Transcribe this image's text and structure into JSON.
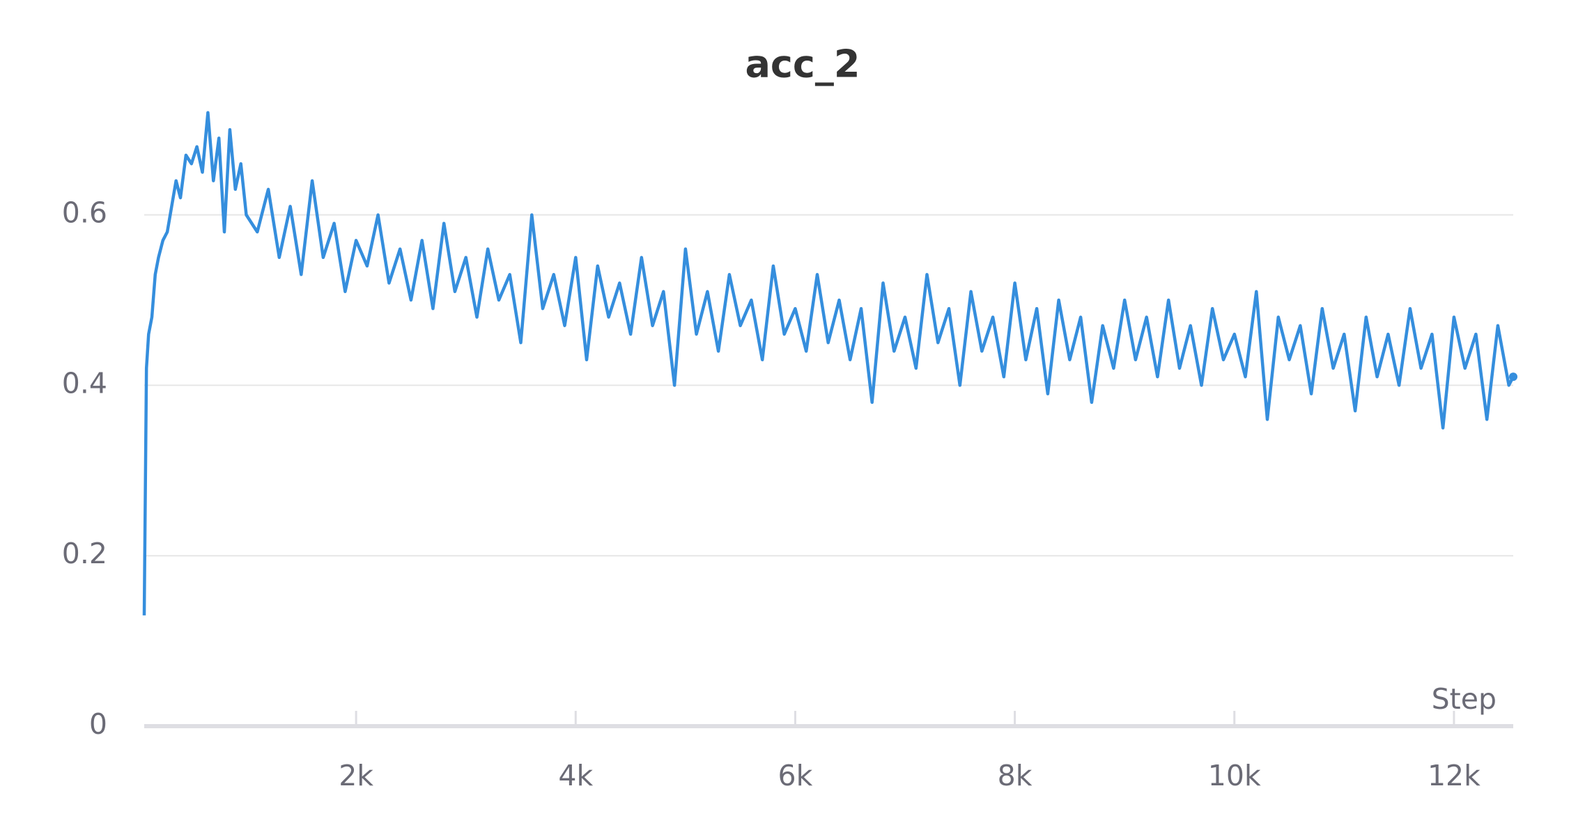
{
  "chart_data": {
    "type": "line",
    "title": "acc_2",
    "xlabel": "Step",
    "x": [
      70,
      90,
      110,
      140,
      170,
      200,
      240,
      280,
      320,
      360,
      400,
      450,
      500,
      550,
      600,
      650,
      700,
      750,
      800,
      850,
      900,
      950,
      1000,
      1100,
      1200,
      1300,
      1400,
      1500,
      1600,
      1700,
      1800,
      1900,
      2000,
      2100,
      2200,
      2300,
      2400,
      2500,
      2600,
      2700,
      2800,
      2900,
      3000,
      3100,
      3200,
      3300,
      3400,
      3500,
      3600,
      3700,
      3800,
      3900,
      4000,
      4100,
      4200,
      4300,
      4400,
      4500,
      4600,
      4700,
      4800,
      4900,
      5000,
      5100,
      5200,
      5300,
      5400,
      5500,
      5600,
      5700,
      5800,
      5900,
      6000,
      6100,
      6200,
      6300,
      6400,
      6500,
      6600,
      6700,
      6800,
      6900,
      7000,
      7100,
      7200,
      7300,
      7400,
      7500,
      7600,
      7700,
      7800,
      7900,
      8000,
      8100,
      8200,
      8300,
      8400,
      8500,
      8600,
      8700,
      8800,
      8900,
      9000,
      9100,
      9200,
      9300,
      9400,
      9500,
      9600,
      9700,
      9800,
      9900,
      10000,
      10100,
      10200,
      10300,
      10400,
      10500,
      10600,
      10700,
      10800,
      10900,
      11000,
      11100,
      11200,
      11300,
      11400,
      11500,
      11600,
      11700,
      11800,
      11900,
      12000,
      12100,
      12200,
      12300,
      12400,
      12500,
      12540
    ],
    "series": [
      {
        "name": "acc_2",
        "color": "#358edd",
        "values": [
          0.13,
          0.42,
          0.46,
          0.48,
          0.53,
          0.55,
          0.57,
          0.58,
          0.61,
          0.64,
          0.62,
          0.67,
          0.66,
          0.68,
          0.65,
          0.72,
          0.64,
          0.69,
          0.58,
          0.7,
          0.63,
          0.66,
          0.6,
          0.58,
          0.63,
          0.55,
          0.61,
          0.53,
          0.64,
          0.55,
          0.59,
          0.51,
          0.57,
          0.54,
          0.6,
          0.52,
          0.56,
          0.5,
          0.57,
          0.49,
          0.59,
          0.51,
          0.55,
          0.48,
          0.56,
          0.5,
          0.53,
          0.45,
          0.6,
          0.49,
          0.53,
          0.47,
          0.55,
          0.43,
          0.54,
          0.48,
          0.52,
          0.46,
          0.55,
          0.47,
          0.51,
          0.4,
          0.56,
          0.46,
          0.51,
          0.44,
          0.53,
          0.47,
          0.5,
          0.43,
          0.54,
          0.46,
          0.49,
          0.44,
          0.53,
          0.45,
          0.5,
          0.43,
          0.49,
          0.38,
          0.52,
          0.44,
          0.48,
          0.42,
          0.53,
          0.45,
          0.49,
          0.4,
          0.51,
          0.44,
          0.48,
          0.41,
          0.52,
          0.43,
          0.49,
          0.39,
          0.5,
          0.43,
          0.48,
          0.38,
          0.47,
          0.42,
          0.5,
          0.43,
          0.48,
          0.41,
          0.5,
          0.42,
          0.47,
          0.4,
          0.49,
          0.43,
          0.46,
          0.41,
          0.51,
          0.36,
          0.48,
          0.43,
          0.47,
          0.39,
          0.49,
          0.42,
          0.46,
          0.37,
          0.48,
          0.41,
          0.46,
          0.4,
          0.49,
          0.42,
          0.46,
          0.35,
          0.48,
          0.42,
          0.46,
          0.36,
          0.47,
          0.4,
          0.41
        ]
      }
    ],
    "xlim": [
      70,
      12540
    ],
    "ylim": [
      0,
      0.75
    ],
    "xticks": [
      {
        "value": 2000,
        "label": "2k"
      },
      {
        "value": 4000,
        "label": "4k"
      },
      {
        "value": 6000,
        "label": "6k"
      },
      {
        "value": 8000,
        "label": "8k"
      },
      {
        "value": 10000,
        "label": "10k"
      },
      {
        "value": 12000,
        "label": "12k"
      }
    ],
    "yticks": [
      0,
      0.2,
      0.4,
      0.6
    ],
    "grid": true
  }
}
